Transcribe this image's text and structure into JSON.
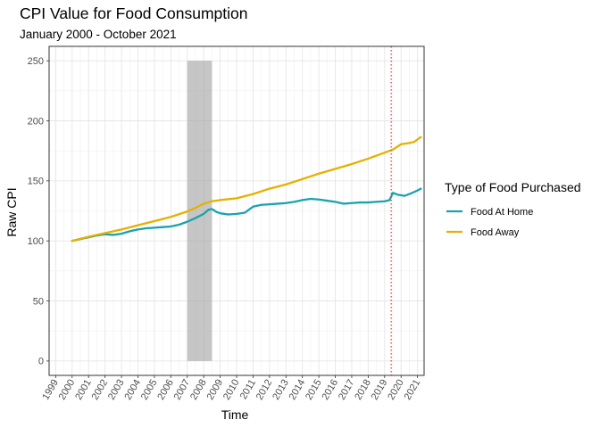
{
  "chart_data": {
    "type": "line",
    "title": "CPI Value for Food Consumption",
    "subtitle": "January 2000 - October 2021",
    "xlabel": "Time",
    "ylabel": "Raw CPI",
    "xlim": [
      1998.6,
      2021.4
    ],
    "ylim": [
      -12,
      262
    ],
    "x_ticks": [
      1999,
      2000,
      2001,
      2002,
      2003,
      2004,
      2005,
      2006,
      2007,
      2008,
      2009,
      2010,
      2011,
      2012,
      2013,
      2014,
      2015,
      2016,
      2017,
      2018,
      2019,
      2020,
      2021
    ],
    "y_ticks": [
      0,
      50,
      100,
      150,
      200,
      250
    ],
    "grid": true,
    "legend": {
      "title": "Type of Food Purchased",
      "position": "right"
    },
    "shaded_region": {
      "x": [
        2007.0,
        2008.5
      ],
      "y": [
        0,
        250
      ],
      "color": "#a0a0a0"
    },
    "vline": {
      "x": 2019.4,
      "color": "#e8413c",
      "style": "dotted"
    },
    "series": [
      {
        "name": "Food At Home",
        "color": "#1aa3ad",
        "points": [
          [
            2000.0,
            100.0
          ],
          [
            2000.5,
            101.5
          ],
          [
            2001.0,
            103.0
          ],
          [
            2001.5,
            104.5
          ],
          [
            2002.0,
            105.5
          ],
          [
            2002.5,
            105.0
          ],
          [
            2003.0,
            106.0
          ],
          [
            2003.5,
            108.0
          ],
          [
            2004.0,
            109.5
          ],
          [
            2004.5,
            110.5
          ],
          [
            2005.0,
            111.0
          ],
          [
            2005.5,
            111.5
          ],
          [
            2006.0,
            112.0
          ],
          [
            2006.5,
            113.5
          ],
          [
            2007.0,
            116.0
          ],
          [
            2007.5,
            119.0
          ],
          [
            2008.0,
            122.5
          ],
          [
            2008.3,
            126.0
          ],
          [
            2008.5,
            126.5
          ],
          [
            2008.8,
            124.0
          ],
          [
            2009.0,
            123.0
          ],
          [
            2009.5,
            122.0
          ],
          [
            2010.0,
            122.5
          ],
          [
            2010.5,
            123.5
          ],
          [
            2010.8,
            126.5
          ],
          [
            2011.0,
            128.5
          ],
          [
            2011.5,
            130.0
          ],
          [
            2012.0,
            130.5
          ],
          [
            2012.5,
            131.0
          ],
          [
            2013.0,
            131.5
          ],
          [
            2013.5,
            132.5
          ],
          [
            2014.0,
            134.0
          ],
          [
            2014.5,
            135.0
          ],
          [
            2015.0,
            134.5
          ],
          [
            2015.5,
            133.5
          ],
          [
            2016.0,
            132.5
          ],
          [
            2016.5,
            131.0
          ],
          [
            2017.0,
            131.5
          ],
          [
            2017.5,
            132.0
          ],
          [
            2018.0,
            132.0
          ],
          [
            2018.5,
            132.5
          ],
          [
            2019.0,
            133.0
          ],
          [
            2019.3,
            134.0
          ],
          [
            2019.5,
            140.0
          ],
          [
            2019.8,
            138.5
          ],
          [
            2020.2,
            137.5
          ],
          [
            2020.6,
            139.5
          ],
          [
            2021.0,
            142.0
          ],
          [
            2021.2,
            143.5
          ]
        ]
      },
      {
        "name": "Food Away",
        "color": "#e6b000",
        "points": [
          [
            2000.0,
            100.0
          ],
          [
            2001.0,
            103.5
          ],
          [
            2002.0,
            106.5
          ],
          [
            2003.0,
            109.5
          ],
          [
            2004.0,
            113.0
          ],
          [
            2005.0,
            116.5
          ],
          [
            2006.0,
            120.0
          ],
          [
            2007.0,
            124.5
          ],
          [
            2007.5,
            127.5
          ],
          [
            2008.0,
            131.0
          ],
          [
            2008.5,
            133.0
          ],
          [
            2009.0,
            134.0
          ],
          [
            2010.0,
            135.5
          ],
          [
            2011.0,
            139.0
          ],
          [
            2012.0,
            143.5
          ],
          [
            2013.0,
            147.0
          ],
          [
            2014.0,
            151.5
          ],
          [
            2015.0,
            156.0
          ],
          [
            2016.0,
            160.0
          ],
          [
            2017.0,
            164.0
          ],
          [
            2018.0,
            168.5
          ],
          [
            2019.0,
            173.5
          ],
          [
            2019.5,
            176.0
          ],
          [
            2020.0,
            180.5
          ],
          [
            2020.5,
            181.5
          ],
          [
            2020.8,
            182.5
          ],
          [
            2021.0,
            184.5
          ],
          [
            2021.2,
            186.5
          ]
        ]
      }
    ]
  }
}
